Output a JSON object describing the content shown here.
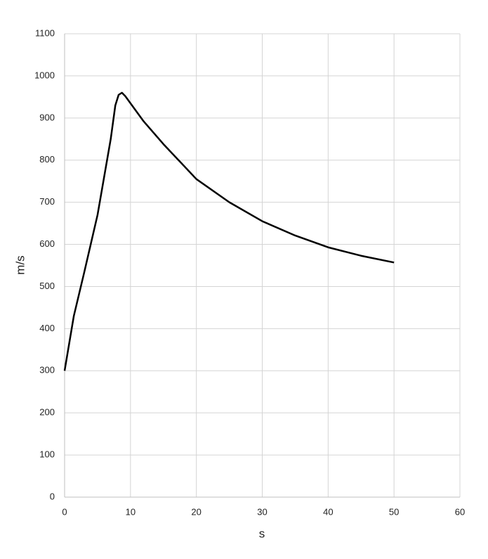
{
  "chart_data": {
    "type": "line",
    "x_label": "s",
    "y_label": "m/s",
    "x": [
      0,
      1.4,
      3,
      5,
      7,
      7.7,
      8.2,
      8.7,
      9.2,
      10,
      12,
      15,
      20,
      25,
      30,
      35,
      40,
      45,
      50
    ],
    "series": [
      {
        "color": "#000000",
        "values": [
          300,
          430,
          535,
          670,
          850,
          930,
          955,
          960,
          952,
          935,
          892,
          838,
          755,
          700,
          655,
          621,
          593,
          573,
          557
        ]
      }
    ],
    "xlim": [
      0,
      60
    ],
    "xticks": [
      0,
      10,
      20,
      30,
      40,
      50,
      60
    ],
    "ylim": [
      0,
      1100
    ],
    "yticks": [
      0,
      100,
      200,
      300,
      400,
      500,
      600,
      700,
      800,
      900,
      1000,
      1100
    ],
    "grid": true
  }
}
